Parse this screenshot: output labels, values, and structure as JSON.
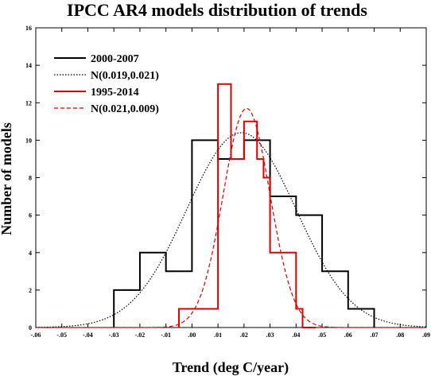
{
  "chart_data": {
    "type": "line",
    "title": "IPCC AR4 models distribution of trends",
    "xlabel": "Trend (deg C/year)",
    "ylabel": "Number of models",
    "xlim": [
      -0.06,
      0.09
    ],
    "ylim": [
      0,
      16
    ],
    "x_ticks": [
      -0.06,
      -0.05,
      -0.04,
      -0.03,
      -0.02,
      -0.01,
      0.0,
      0.01,
      0.02,
      0.03,
      0.04,
      0.05,
      0.06,
      0.07,
      0.08,
      0.09
    ],
    "x_tick_labels": [
      "-.06",
      "-.05",
      "-.04",
      "-.03",
      "-.02",
      "-.01",
      ".00",
      ".01",
      ".02",
      ".03",
      ".04",
      ".05",
      ".06",
      ".07",
      ".08",
      ".09"
    ],
    "y_ticks": [
      0,
      2,
      4,
      6,
      8,
      10,
      12,
      14,
      16
    ],
    "y_tick_labels": [
      "0",
      "2",
      "4",
      "6",
      "8",
      "10",
      "12",
      "14",
      "16"
    ],
    "legend_position": "top-left",
    "series": [
      {
        "name": "2000-2007",
        "kind": "histogram",
        "color": "#000000",
        "dash": "solid",
        "bin_edges": [
          -0.03,
          -0.02,
          -0.01,
          0.0,
          0.01,
          0.02,
          0.03,
          0.04,
          0.05,
          0.06,
          0.07
        ],
        "counts": [
          2,
          4,
          3,
          10,
          9,
          10,
          7,
          6,
          3,
          1
        ]
      },
      {
        "name": "N(0.019,0.021)",
        "kind": "normal",
        "color": "#000000",
        "dash": "dotted",
        "peak": 10.4
      },
      {
        "name": "1995-2014",
        "kind": "histogram",
        "color": "#dd0000",
        "dash": "solid",
        "bin_edges": [
          -0.005,
          0.0025,
          0.01,
          0.015,
          0.02,
          0.025,
          0.0275,
          0.03,
          0.04,
          0.0425,
          0.0475
        ],
        "counts": [
          1,
          1,
          13,
          9,
          11,
          9,
          8,
          4,
          1,
          0
        ]
      },
      {
        "name": "N(0.021,0.009)",
        "kind": "normal",
        "color": "#dd0000",
        "dash": "dashed",
        "peak": 11.7
      }
    ]
  }
}
